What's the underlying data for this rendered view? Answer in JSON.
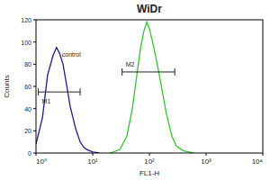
{
  "chart_data": {
    "type": "line",
    "title": "WiDr",
    "x_label": "FL1-H",
    "y_label": "Counts",
    "log": "x",
    "xlim": [
      1,
      10000
    ],
    "xticks": [
      {
        "value": 1,
        "label": "10⁰"
      },
      {
        "value": 10,
        "label": "10¹"
      },
      {
        "value": 100,
        "label": "10²"
      },
      {
        "value": 1000,
        "label": "10³"
      },
      {
        "value": 10000,
        "label": "10⁴"
      }
    ],
    "ylim": [
      0,
      120
    ],
    "yticks": [
      0,
      20,
      40,
      60,
      80,
      100,
      120
    ],
    "series": [
      {
        "name": "control",
        "color": "#1c1c8a",
        "x": [
          1,
          1.3,
          1.6,
          2,
          2.3,
          2.6,
          3,
          3.5,
          4,
          5,
          6,
          7,
          8,
          10,
          13
        ],
        "values": [
          8,
          32,
          70,
          88,
          95,
          90,
          80,
          60,
          42,
          22,
          10,
          5,
          3,
          1,
          0
        ]
      },
      {
        "name": null,
        "color": "#35c435",
        "x": [
          20,
          30,
          40,
          50,
          60,
          70,
          80,
          90,
          100,
          120,
          150,
          200,
          250,
          300,
          400,
          600
        ],
        "values": [
          0,
          3,
          15,
          40,
          70,
          95,
          110,
          118,
          112,
          95,
          70,
          35,
          15,
          6,
          2,
          0
        ]
      }
    ],
    "gates": [
      {
        "label": "M1",
        "x": [
          1.1,
          6
        ],
        "y": 55
      },
      {
        "label": "M2",
        "x": [
          33,
          280
        ],
        "y": 73
      }
    ]
  }
}
